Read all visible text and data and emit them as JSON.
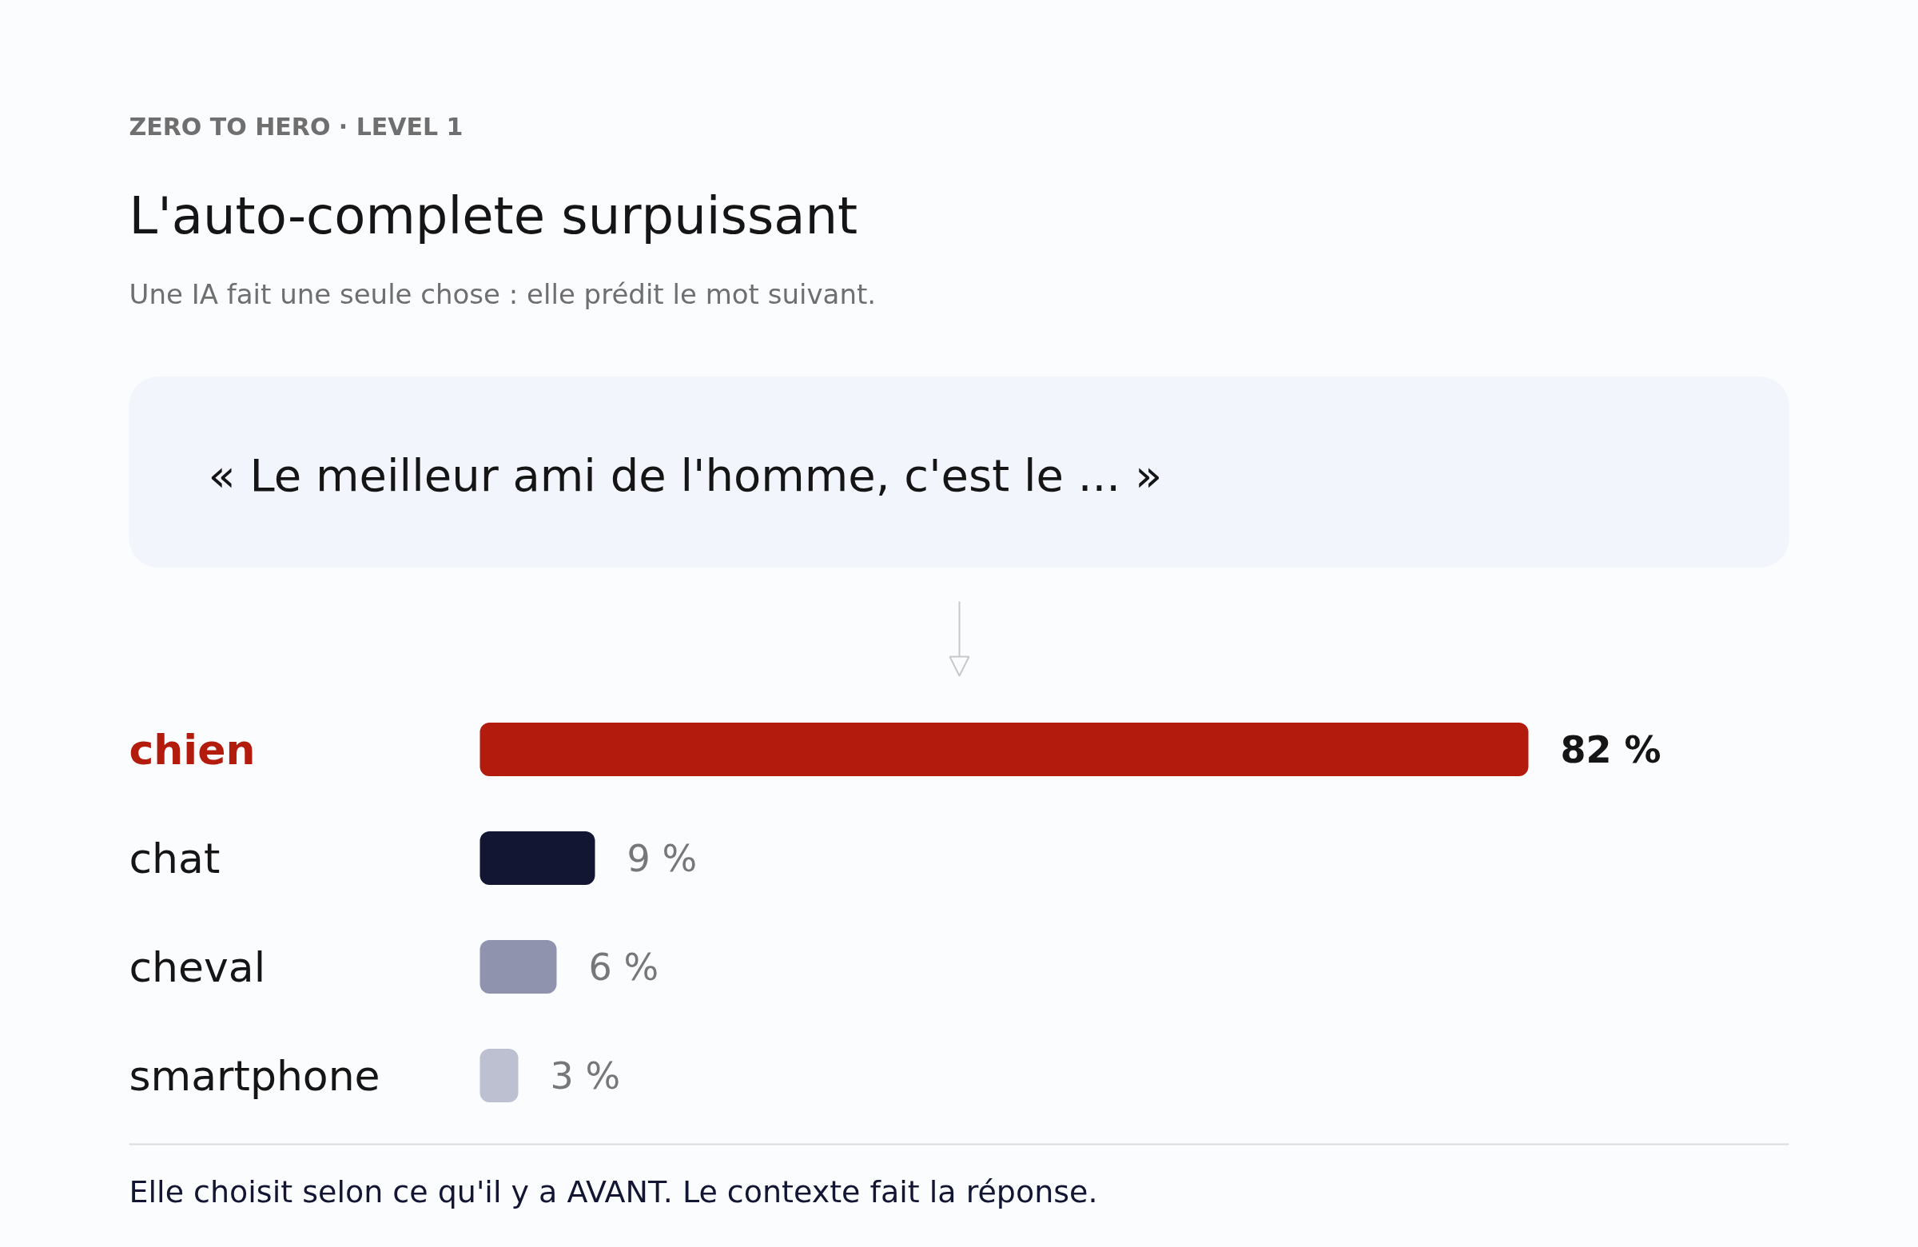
{
  "chart_data": {
    "type": "bar",
    "orientation": "horizontal",
    "title": "L'auto-complete surpuissant",
    "subtitle": "ZERO TO HERO · LEVEL 1",
    "annotations": [
      "Une IA fait une seule chose : elle prédit le mot suivant.",
      "« Le meilleur ami de l'homme, c'est le ... »",
      "Elle choisit selon ce qu'il y a AVANT. Le contexte fait la réponse."
    ],
    "categories": [
      "chien",
      "chat",
      "cheval",
      "smartphone"
    ],
    "values": [
      82,
      9,
      6,
      3
    ],
    "colors": [
      "#b31b0c",
      "#121633",
      "#8f93ae",
      "#bcc0d0"
    ],
    "value_labels": [
      "82 %",
      "9 %",
      "6 %",
      "3 %"
    ],
    "grid": false
  }
}
